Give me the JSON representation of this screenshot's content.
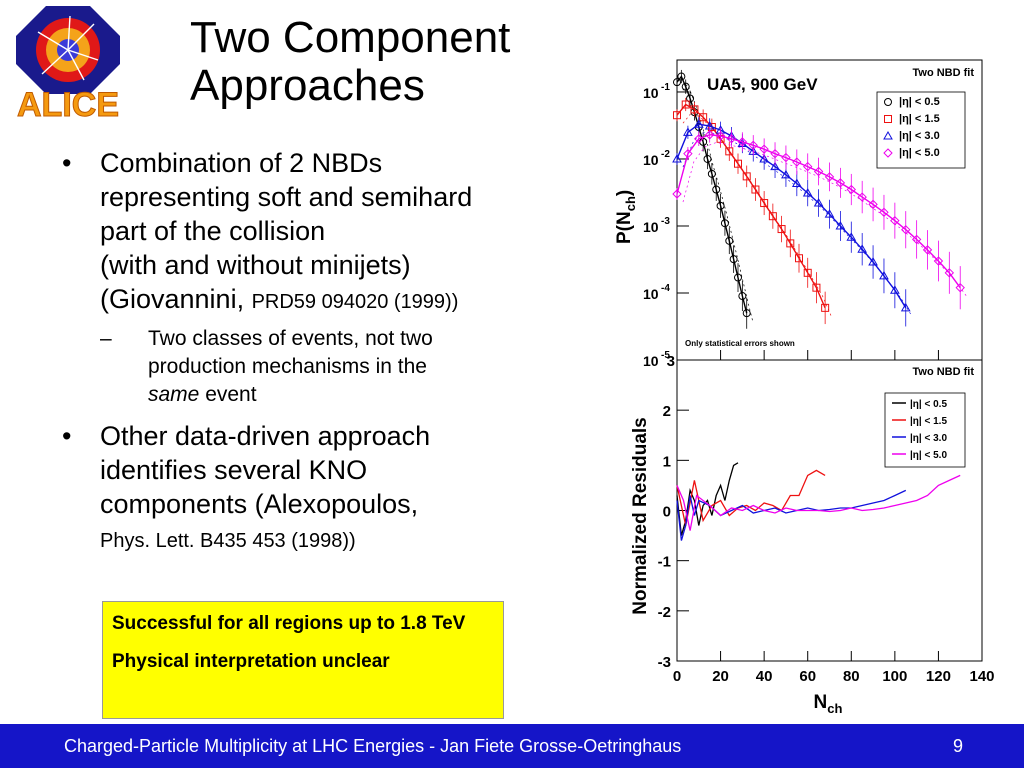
{
  "slide": {
    "title_line1": "Two Component",
    "title_line2": "Approaches",
    "logo_text": "ALICE",
    "bullets": [
      {
        "line1": "Combination of 2 NBDs",
        "line2": "representing soft and semihard",
        "line3": "part of the collision",
        "line4": "(with and without minijets)",
        "line5": "(Giovannini, ",
        "ref": "PRD59 094020 (1999))"
      },
      {
        "line1": "Other data-driven approach",
        "line2": "identifies several KNO",
        "line3": "components (Alexopoulos,",
        "ref": "Phys. Lett. B435 453 (1998))"
      }
    ],
    "sub_bullet": {
      "line1": "Two classes of events, not two",
      "line2": "production mechanisms in the",
      "emph": "same",
      "rest": " event"
    },
    "callout": {
      "line1": "Successful for all regions up to 1.8 TeV",
      "line2": "Physical interpretation unclear"
    },
    "footer": {
      "text": "Charged-Particle Multiplicity at LHC Energies - Jan Fiete Grosse-Oetringhaus",
      "page": "9"
    },
    "bullet_char": "•",
    "dash_char": "–"
  },
  "chart_data": [
    {
      "type": "scatter",
      "title": "Two NBD fit",
      "annotation": "UA5, 900 GeV",
      "note": "Only statistical errors shown",
      "ylabel": "P(N",
      "ylabel_sub": "ch",
      "ylabel_close": ")",
      "yscale": "log",
      "ylim": [
        1e-05,
        0.3
      ],
      "xlim": [
        0,
        140
      ],
      "yticks": [
        {
          "base": "10",
          "exp": "-1",
          "value": 0.1
        },
        {
          "base": "10",
          "exp": "-2",
          "value": 0.01
        },
        {
          "base": "10",
          "exp": "-3",
          "value": 0.001
        },
        {
          "base": "10",
          "exp": "-4",
          "value": 0.0001
        },
        {
          "base": "10",
          "exp": "-5",
          "value": 1e-05
        }
      ],
      "legend": [
        {
          "label": "|η| < 0.5",
          "marker": "circle",
          "color": "#000000"
        },
        {
          "label": "|η| < 1.5",
          "marker": "square",
          "color": "#ee1111"
        },
        {
          "label": "|η| < 3.0",
          "marker": "triangle",
          "color": "#1111dd"
        },
        {
          "label": "|η| < 5.0",
          "marker": "diamond",
          "color": "#ee00ee"
        }
      ],
      "series": [
        {
          "name": "|η| < 0.5",
          "color": "#000000",
          "x": [
            0,
            2,
            4,
            6,
            8,
            10,
            12,
            14,
            16,
            18,
            20,
            22,
            24,
            26,
            28,
            30,
            32
          ],
          "y": [
            0.14,
            0.17,
            0.12,
            0.08,
            0.05,
            0.03,
            0.018,
            0.01,
            0.006,
            0.0035,
            0.002,
            0.0011,
            0.0006,
            0.00032,
            0.00017,
            9e-05,
            5e-05
          ]
        },
        {
          "name": "|η| < 1.5",
          "color": "#ee1111",
          "x": [
            0,
            4,
            8,
            12,
            16,
            20,
            24,
            28,
            32,
            36,
            40,
            44,
            48,
            52,
            56,
            60,
            64,
            68
          ],
          "y": [
            0.045,
            0.065,
            0.055,
            0.042,
            0.03,
            0.02,
            0.013,
            0.0085,
            0.0055,
            0.0035,
            0.0022,
            0.0014,
            0.0009,
            0.00055,
            0.00033,
            0.0002,
            0.00012,
            6e-05
          ]
        },
        {
          "name": "|η| < 3.0",
          "color": "#1111dd",
          "x": [
            0,
            5,
            10,
            15,
            20,
            25,
            30,
            35,
            40,
            45,
            50,
            55,
            60,
            65,
            70,
            75,
            80,
            85,
            90,
            95,
            100,
            105
          ],
          "y": [
            0.01,
            0.025,
            0.033,
            0.031,
            0.027,
            0.022,
            0.017,
            0.013,
            0.01,
            0.0077,
            0.0058,
            0.0043,
            0.0031,
            0.0022,
            0.0015,
            0.001,
            0.00068,
            0.00045,
            0.00029,
            0.00018,
            0.00011,
            6e-05
          ]
        },
        {
          "name": "|η| < 5.0",
          "color": "#ee00ee",
          "x": [
            0,
            5,
            10,
            15,
            20,
            25,
            30,
            35,
            40,
            45,
            50,
            55,
            60,
            65,
            70,
            75,
            80,
            85,
            90,
            95,
            100,
            105,
            110,
            115,
            120,
            125,
            130
          ],
          "y": [
            0.003,
            0.012,
            0.02,
            0.023,
            0.022,
            0.02,
            0.018,
            0.016,
            0.014,
            0.012,
            0.0105,
            0.009,
            0.0077,
            0.0065,
            0.0054,
            0.0044,
            0.0035,
            0.0027,
            0.0021,
            0.0016,
            0.0012,
            0.00088,
            0.00063,
            0.00044,
            0.0003,
            0.0002,
            0.00012
          ]
        }
      ]
    },
    {
      "type": "line",
      "title": "Two NBD fit",
      "ylabel": "Normalized Residuals",
      "xlabel": "N",
      "xlabel_sub": "ch",
      "xlim": [
        0,
        140
      ],
      "ylim": [
        -3,
        3
      ],
      "xticks": [
        "0",
        "20",
        "40",
        "60",
        "80",
        "100",
        "120",
        "140"
      ],
      "yticks": [
        "2",
        "1",
        "0",
        "-1",
        "-2",
        "-3"
      ],
      "ytick_values": [
        2,
        1,
        0,
        -1,
        -2,
        -3
      ],
      "extra_ytick": "3",
      "legend": [
        {
          "label": "|η| < 0.5",
          "color": "#000000"
        },
        {
          "label": "|η| < 1.5",
          "color": "#ee1111"
        },
        {
          "label": "|η| < 3.0",
          "color": "#1111dd"
        },
        {
          "label": "|η| < 5.0",
          "color": "#ee00ee"
        }
      ],
      "series": [
        {
          "name": "|η| < 0.5",
          "color": "#000000",
          "x": [
            0,
            2,
            4,
            6,
            8,
            10,
            12,
            14,
            16,
            18,
            20,
            22,
            24,
            26,
            28
          ],
          "y": [
            0.3,
            -0.5,
            -0.2,
            0.4,
            0.2,
            -0.3,
            0.1,
            0.2,
            -0.1,
            0.3,
            0.5,
            0.2,
            0.6,
            0.9,
            0.95
          ]
        },
        {
          "name": "|η| < 1.5",
          "color": "#ee1111",
          "x": [
            0,
            4,
            8,
            12,
            16,
            20,
            24,
            28,
            32,
            36,
            40,
            44,
            48,
            52,
            56,
            60,
            64,
            68
          ],
          "y": [
            0.5,
            -0.3,
            0.6,
            -0.2,
            0.1,
            0.2,
            -0.1,
            0.05,
            0.1,
            0.0,
            0.15,
            0.1,
            0.0,
            0.3,
            0.3,
            0.7,
            0.8,
            0.7
          ]
        },
        {
          "name": "|η| < 3.0",
          "color": "#1111dd",
          "x": [
            0,
            2,
            4,
            6,
            8,
            10,
            15,
            20,
            25,
            30,
            35,
            40,
            45,
            50,
            55,
            60,
            65,
            70,
            75,
            80,
            85,
            90,
            95,
            100,
            105
          ],
          "y": [
            0.2,
            -0.6,
            -0.3,
            0.3,
            -0.1,
            0.2,
            0.1,
            -0.1,
            0.0,
            0.1,
            -0.05,
            0.0,
            0.05,
            -0.05,
            0.0,
            0.05,
            0.0,
            0.02,
            0.05,
            0.05,
            0.1,
            0.15,
            0.2,
            0.3,
            0.4
          ]
        },
        {
          "name": "|η| < 5.0",
          "color": "#ee00ee",
          "x": [
            0,
            3,
            6,
            9,
            12,
            15,
            20,
            25,
            30,
            35,
            40,
            45,
            50,
            55,
            60,
            65,
            70,
            75,
            80,
            85,
            90,
            95,
            100,
            105,
            110,
            115,
            120,
            125,
            130
          ],
          "y": [
            0.5,
            0.2,
            -0.4,
            0.3,
            0.2,
            0.1,
            -0.1,
            0.05,
            0.0,
            0.1,
            0.0,
            -0.05,
            0.05,
            0.0,
            0.0,
            0.0,
            -0.02,
            0.0,
            0.05,
            0.0,
            0.02,
            0.05,
            0.1,
            0.15,
            0.2,
            0.3,
            0.5,
            0.6,
            0.7
          ]
        }
      ]
    }
  ]
}
